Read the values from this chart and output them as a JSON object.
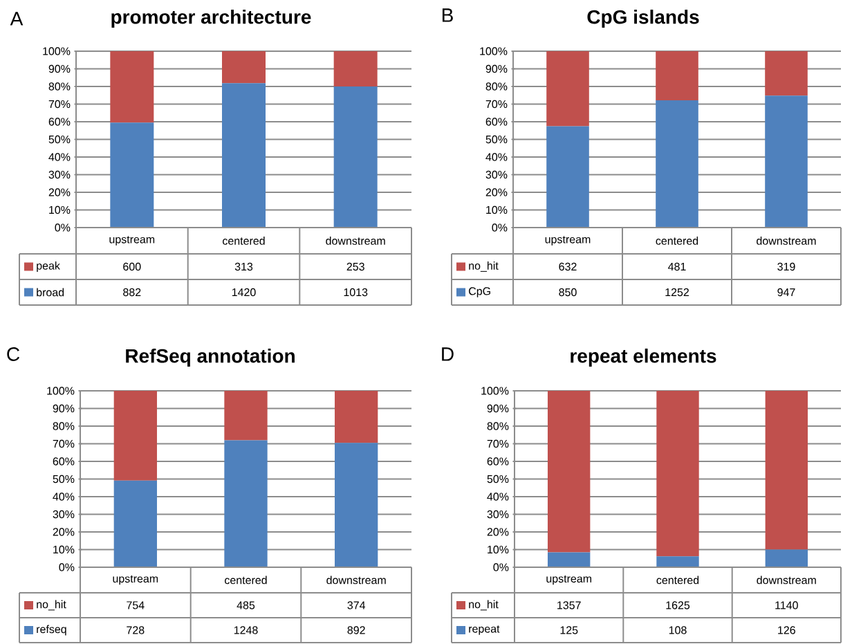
{
  "chart_data": [
    {
      "type": "bar",
      "stacked": true,
      "title": "promoter architecture",
      "annotations": [
        "A",
        "600",
        "313",
        "253",
        "882",
        "1420",
        "1013"
      ],
      "categories": [
        "upstream",
        "centered",
        "downstream"
      ],
      "series": [
        {
          "name": "broad",
          "color": "#4f81bd",
          "values": [
            59.5,
            81.9,
            80.0
          ]
        },
        {
          "name": "peak",
          "color": "#c0504d",
          "values": [
            40.5,
            18.1,
            20.0
          ]
        }
      ],
      "ylim": [
        0,
        100
      ],
      "yticks": [
        {
          "value": 0,
          "label": "0%"
        },
        {
          "value": 10,
          "label": "10%"
        },
        {
          "value": 20,
          "label": "20%"
        },
        {
          "value": 30,
          "label": "30%"
        },
        {
          "value": 40,
          "label": "40%"
        },
        {
          "value": 50,
          "label": "50%"
        },
        {
          "value": 60,
          "label": "60%"
        },
        {
          "value": 70,
          "label": "70%"
        },
        {
          "value": 80,
          "label": "80%"
        },
        {
          "value": 90,
          "label": "90%"
        },
        {
          "value": 100,
          "label": "100%"
        }
      ],
      "grid": "y",
      "legend": "bottom"
    },
    {
      "type": "bar",
      "stacked": true,
      "title": "CpG islands",
      "annotations": [
        "B",
        "632",
        "481",
        "319",
        "850",
        "1252",
        "947"
      ],
      "categories": [
        "upstream",
        "centered",
        "downstream"
      ],
      "series": [
        {
          "name": "CpG",
          "color": "#4f81bd",
          "values": [
            57.4,
            72.2,
            74.8
          ]
        },
        {
          "name": "no_hit",
          "color": "#c0504d",
          "values": [
            42.6,
            27.8,
            25.2
          ]
        }
      ],
      "ylim": [
        0,
        100
      ],
      "yticks": [
        {
          "value": 0,
          "label": "0%"
        },
        {
          "value": 10,
          "label": "10%"
        },
        {
          "value": 20,
          "label": "20%"
        },
        {
          "value": 30,
          "label": "30%"
        },
        {
          "value": 40,
          "label": "40%"
        },
        {
          "value": 50,
          "label": "50%"
        },
        {
          "value": 60,
          "label": "60%"
        },
        {
          "value": 70,
          "label": "70%"
        },
        {
          "value": 80,
          "label": "80%"
        },
        {
          "value": 90,
          "label": "90%"
        },
        {
          "value": 100,
          "label": "100%"
        }
      ],
      "grid": "y",
      "legend": "bottom"
    },
    {
      "type": "bar",
      "stacked": true,
      "title": "RefSeq annotation",
      "annotations": [
        "C",
        "754",
        "485",
        "374",
        "728",
        "1248",
        "892"
      ],
      "categories": [
        "upstream",
        "centered",
        "downstream"
      ],
      "series": [
        {
          "name": "refseq",
          "color": "#4f81bd",
          "values": [
            49.1,
            72.0,
            70.5
          ]
        },
        {
          "name": "no_hit",
          "color": "#c0504d",
          "values": [
            50.9,
            28.0,
            29.5
          ]
        }
      ],
      "ylim": [
        0,
        100
      ],
      "yticks": [
        {
          "value": 0,
          "label": "0%"
        },
        {
          "value": 10,
          "label": "10%"
        },
        {
          "value": 20,
          "label": "20%"
        },
        {
          "value": 30,
          "label": "30%"
        },
        {
          "value": 40,
          "label": "40%"
        },
        {
          "value": 50,
          "label": "50%"
        },
        {
          "value": 60,
          "label": "60%"
        },
        {
          "value": 70,
          "label": "70%"
        },
        {
          "value": 80,
          "label": "80%"
        },
        {
          "value": 90,
          "label": "90%"
        },
        {
          "value": 100,
          "label": "100%"
        }
      ],
      "grid": "y",
      "legend": "bottom"
    },
    {
      "type": "bar",
      "stacked": true,
      "title": "repeat elements",
      "annotations": [
        "D",
        "1357",
        "1625",
        "1140",
        "125",
        "108",
        "126"
      ],
      "categories": [
        "upstream",
        "centered",
        "downstream"
      ],
      "series": [
        {
          "name": "repeat",
          "color": "#4f81bd",
          "values": [
            8.4,
            6.2,
            10.0
          ]
        },
        {
          "name": "no_hit",
          "color": "#c0504d",
          "values": [
            91.6,
            93.8,
            90.0
          ]
        }
      ],
      "ylim": [
        0,
        100
      ],
      "yticks": [
        {
          "value": 0,
          "label": "0%"
        },
        {
          "value": 10,
          "label": "10%"
        },
        {
          "value": 20,
          "label": "20%"
        },
        {
          "value": 30,
          "label": "30%"
        },
        {
          "value": 40,
          "label": "40%"
        },
        {
          "value": 50,
          "label": "50%"
        },
        {
          "value": 60,
          "label": "60%"
        },
        {
          "value": 70,
          "label": "70%"
        },
        {
          "value": 80,
          "label": "80%"
        },
        {
          "value": 90,
          "label": "90%"
        },
        {
          "value": 100,
          "label": "100%"
        }
      ],
      "grid": "y",
      "legend": "bottom"
    }
  ]
}
